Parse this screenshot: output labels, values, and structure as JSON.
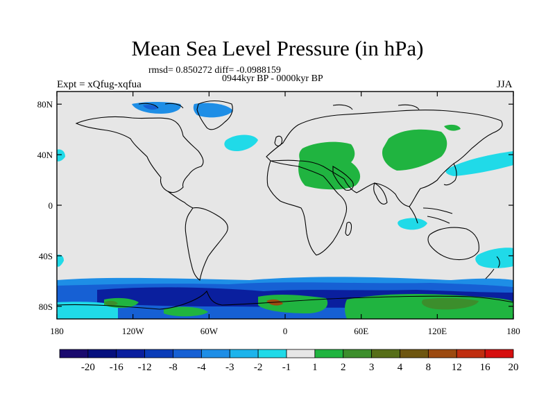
{
  "title": "Mean Sea Level Pressure (in hPa)",
  "stats_text": "rmsd= 0.850272 diff= -0.0988159",
  "period_text": "0944kyr BP - 0000kyr BP",
  "experiment_text": "Expt = xQfug-xqfua",
  "season_text": "JJA",
  "x_tick_labels": [
    "180",
    "120W",
    "60W",
    "0",
    "60E",
    "120E",
    "180"
  ],
  "y_tick_labels": [
    "80N",
    "40N",
    "0",
    "40S",
    "80S"
  ],
  "colorbar": {
    "labels": [
      "-20",
      "-16",
      "-12",
      "-8",
      "-4",
      "-3",
      "-2",
      "-1",
      "1",
      "2",
      "3",
      "4",
      "8",
      "12",
      "16",
      "20"
    ],
    "colors": [
      "#1a0a6e",
      "#06107e",
      "#0a1f9e",
      "#0a3cb8",
      "#1660d4",
      "#1e8ee6",
      "#1cb4ec",
      "#20dae8",
      "#e6e6e6",
      "#20b440",
      "#3c8e2c",
      "#566e18",
      "#6e5610",
      "#9c4a10",
      "#c02e10",
      "#d60f0f"
    ]
  },
  "map_colors": {
    "background": "#e6e6e6",
    "neg_strong": "#0a1f9e",
    "neg_medium": "#1660d4",
    "neg_light": "#1e8ee6",
    "neg_faint": "#20dae8",
    "pos_light": "#20b440",
    "pos_medium": "#3c8e2c",
    "pos_strong": "#9c4a10"
  }
}
